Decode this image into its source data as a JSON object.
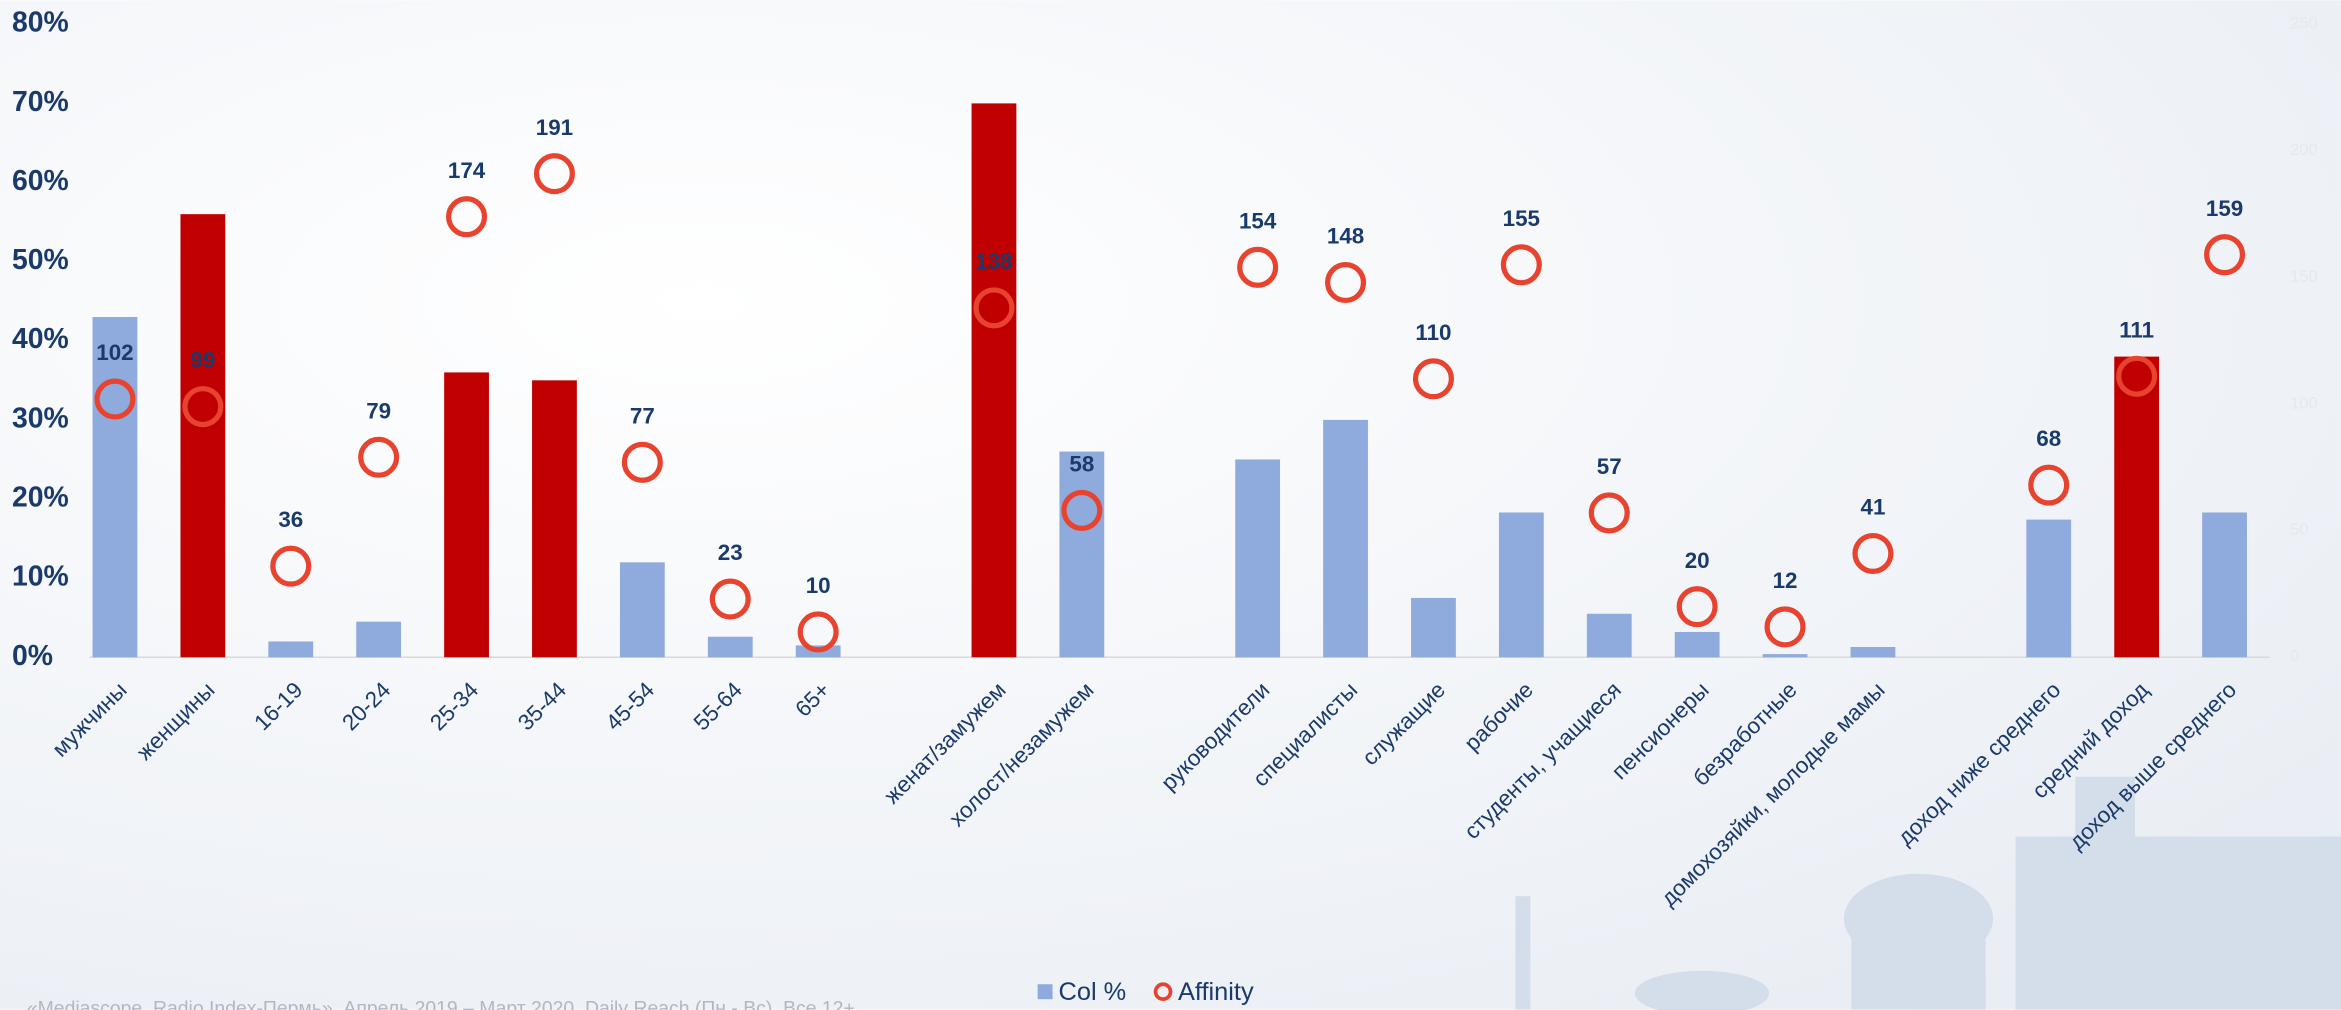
{
  "chart_data": {
    "type": "bar",
    "categories": [
      "мужчины",
      "женщины",
      "16-19",
      "20-24",
      "25-34",
      "35-44",
      "45-54",
      "55-64",
      "65+",
      null,
      "женат/замужем",
      "холост/незамужем",
      null,
      "руководители",
      "специалисты",
      "служащие",
      "рабочие",
      "студенты, учащиеся",
      "пенсионеры",
      "безработные",
      "домохозяйки, молодые мамы",
      null,
      "доход ниже среднего",
      "средний доход",
      "доход выше среднего"
    ],
    "series": [
      {
        "name": "Col %",
        "color": "#8faadc",
        "colors": [
          "#8faadc",
          "#c00000",
          "#8faadc",
          "#8faadc",
          "#c00000",
          "#c00000",
          "#8faadc",
          "#8faadc",
          "#8faadc",
          null,
          "#c00000",
          "#8faadc",
          null,
          "#8faadc",
          "#8faadc",
          "#8faadc",
          "#8faadc",
          "#8faadc",
          "#8faadc",
          "#8faadc",
          "#8faadc",
          null,
          "#8faadc",
          "#c00000",
          "#8faadc"
        ],
        "values": [
          43,
          56,
          2,
          4.5,
          36,
          35,
          12,
          2.6,
          1.5,
          null,
          70,
          26,
          null,
          25,
          30,
          7.5,
          18.3,
          5.5,
          3.2,
          0.4,
          1.3,
          null,
          17.4,
          38,
          18.3
        ]
      },
      {
        "name": "Affinity",
        "color": "#e8432f",
        "axis": "y2",
        "values": [
          102,
          99,
          36,
          79,
          174,
          191,
          77,
          23,
          10,
          null,
          138,
          58,
          null,
          154,
          148,
          110,
          155,
          57,
          20,
          12,
          41,
          null,
          68,
          111,
          159
        ]
      }
    ],
    "ylim": [
      0,
      80
    ],
    "yticks": [
      {
        "value": 0,
        "label": "0%"
      },
      {
        "value": 10,
        "label": "10%"
      },
      {
        "value": 20,
        "label": "20%"
      },
      {
        "value": 30,
        "label": "30%"
      },
      {
        "value": 40,
        "label": "40%"
      },
      {
        "value": 50,
        "label": "50%"
      },
      {
        "value": 60,
        "label": "60%"
      },
      {
        "value": 70,
        "label": "70%"
      },
      {
        "value": 80,
        "label": "80%"
      }
    ],
    "y2lim": [
      0,
      250
    ],
    "y2ticks": [
      0,
      50,
      100,
      150,
      200,
      250
    ],
    "footnote": "«Mediascope. Radio Index-Пермь», Апрель 2019 – Март 2020, Daily Reach (Пн - Вс), Все 12+"
  }
}
